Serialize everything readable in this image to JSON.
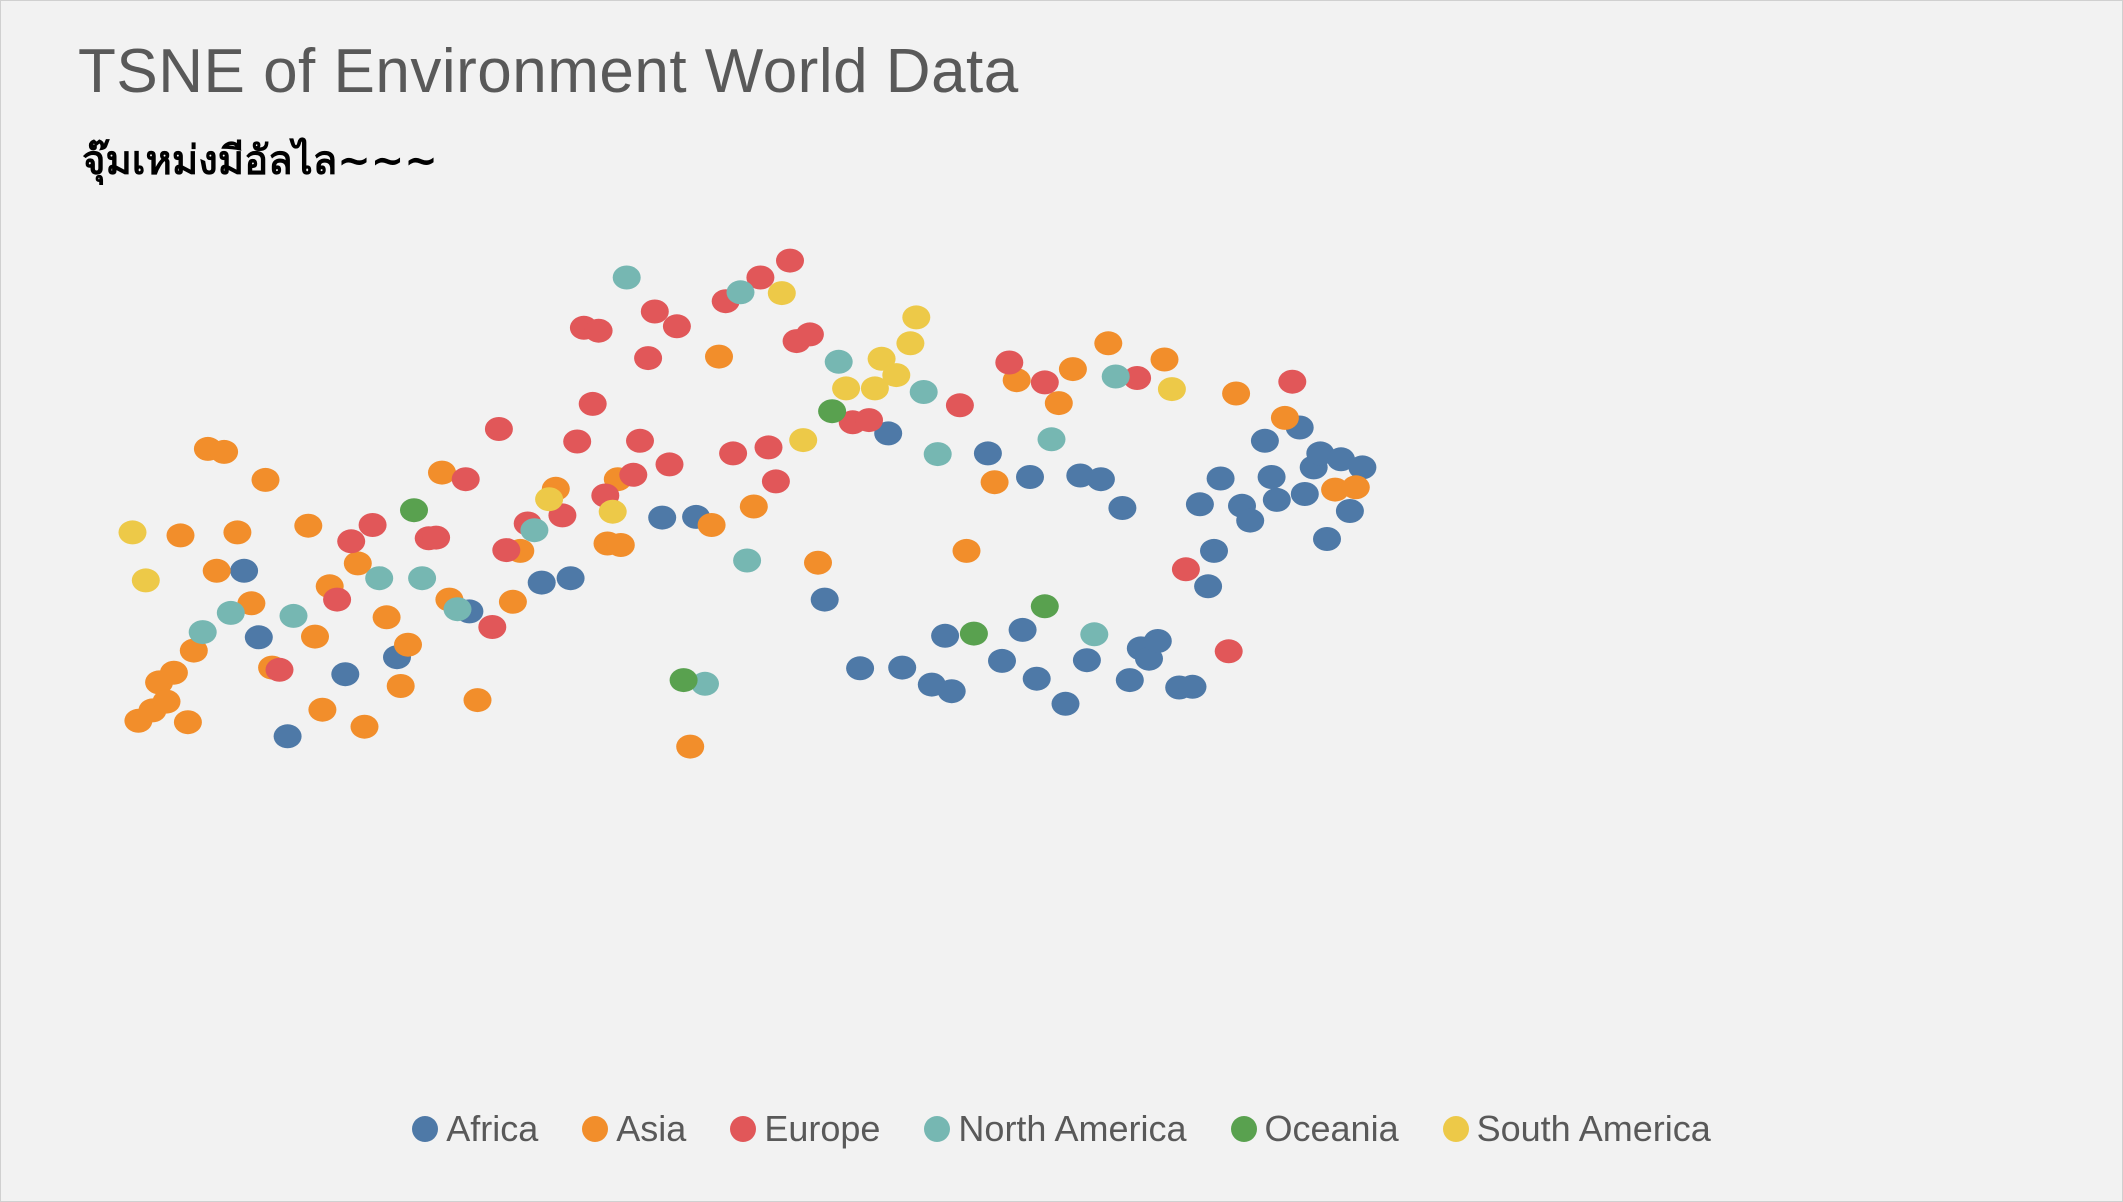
{
  "title": "TSNE of Environment World Data",
  "subtitle": "จุ๊มเหม่งมีอัลไล~~~",
  "colors": {
    "Africa": "#4e79a7",
    "Asia": "#f28e2b",
    "Europe": "#e15759",
    "North America": "#76b7b2",
    "Oceania": "#59a14f",
    "South America": "#edc948"
  },
  "chart_data": {
    "type": "scatter",
    "title": "TSNE of Environment World Data",
    "subtitle": "จุ๊มเหม่งมีอัลไล~~~",
    "xlabel": "",
    "ylabel": "",
    "axes_visible": false,
    "grid": false,
    "legend_position": "bottom",
    "series": [
      {
        "name": "Africa",
        "points": [
          [
            283,
            747
          ],
          [
            303,
            837
          ],
          [
            420,
            887
          ],
          [
            342,
            971
          ],
          [
            490,
            864
          ],
          [
            588,
            802
          ],
          [
            686,
            763
          ],
          [
            725,
            757
          ],
          [
            849,
            675
          ],
          [
            895,
            674
          ],
          [
            1069,
            786
          ],
          [
            1117,
            879
          ],
          [
            1155,
            561
          ],
          [
            1174,
            878
          ],
          [
            1214,
            901
          ],
          [
            1232,
            835
          ],
          [
            1241,
            910
          ],
          [
            1290,
            588
          ],
          [
            1309,
            869
          ],
          [
            1337,
            827
          ],
          [
            1347,
            620
          ],
          [
            1356,
            893
          ],
          [
            1395,
            927
          ],
          [
            1415,
            618
          ],
          [
            1424,
            868
          ],
          [
            1443,
            623
          ],
          [
            1472,
            662
          ],
          [
            1482,
            895
          ],
          [
            1497,
            852
          ],
          [
            1508,
            866
          ],
          [
            1520,
            842
          ],
          [
            1549,
            905
          ],
          [
            1567,
            904
          ],
          [
            1577,
            657
          ],
          [
            1588,
            768
          ],
          [
            1596,
            720
          ],
          [
            1605,
            622
          ],
          [
            1634,
            659
          ],
          [
            1645,
            679
          ],
          [
            1665,
            571
          ],
          [
            1674,
            620
          ],
          [
            1681,
            651
          ],
          [
            1712,
            553
          ],
          [
            1719,
            643
          ],
          [
            1731,
            607
          ],
          [
            1740,
            588
          ],
          [
            1749,
            704
          ],
          [
            1768,
            596
          ],
          [
            1780,
            666
          ],
          [
            1797,
            607
          ]
        ]
      },
      {
        "name": "Asia",
        "points": [
          [
            140,
            950
          ],
          [
            159,
            936
          ],
          [
            168,
            898
          ],
          [
            178,
            924
          ],
          [
            188,
            885
          ],
          [
            207,
            952
          ],
          [
            197,
            699
          ],
          [
            215,
            855
          ],
          [
            234,
            582
          ],
          [
            246,
            747
          ],
          [
            256,
            586
          ],
          [
            274,
            695
          ],
          [
            293,
            791
          ],
          [
            312,
            624
          ],
          [
            321,
            878
          ],
          [
            370,
            686
          ],
          [
            379,
            836
          ],
          [
            389,
            935
          ],
          [
            399,
            768
          ],
          [
            437,
            737
          ],
          [
            446,
            958
          ],
          [
            476,
            810
          ],
          [
            495,
            903
          ],
          [
            505,
            847
          ],
          [
            551,
            614
          ],
          [
            561,
            786
          ],
          [
            599,
            922
          ],
          [
            647,
            789
          ],
          [
            657,
            720
          ],
          [
            705,
            636
          ],
          [
            775,
            710
          ],
          [
            789,
            623
          ],
          [
            793,
            712
          ],
          [
            887,
            985
          ],
          [
            916,
            685
          ],
          [
            926,
            457
          ],
          [
            973,
            660
          ],
          [
            1060,
            736
          ],
          [
            1261,
            720
          ],
          [
            1299,
            627
          ],
          [
            1329,
            489
          ],
          [
            1386,
            520
          ],
          [
            1405,
            474
          ],
          [
            1453,
            439
          ],
          [
            1529,
            461
          ],
          [
            1626,
            507
          ],
          [
            1692,
            540
          ],
          [
            1760,
            637
          ],
          [
            1788,
            634
          ]
        ]
      },
      {
        "name": "Europe",
        "points": [
          [
            331,
            881
          ],
          [
            409,
            786
          ],
          [
            428,
            707
          ],
          [
            457,
            685
          ],
          [
            533,
            703
          ],
          [
            543,
            702
          ],
          [
            583,
            623
          ],
          [
            619,
            823
          ],
          [
            628,
            555
          ],
          [
            638,
            719
          ],
          [
            667,
            683
          ],
          [
            714,
            672
          ],
          [
            734,
            572
          ],
          [
            743,
            418
          ],
          [
            755,
            521
          ],
          [
            763,
            422
          ],
          [
            772,
            645
          ],
          [
            810,
            617
          ],
          [
            819,
            571
          ],
          [
            830,
            459
          ],
          [
            839,
            396
          ],
          [
            859,
            603
          ],
          [
            869,
            416
          ],
          [
            935,
            382
          ],
          [
            945,
            588
          ],
          [
            982,
            350
          ],
          [
            993,
            580
          ],
          [
            1003,
            626
          ],
          [
            1022,
            327
          ],
          [
            1031,
            436
          ],
          [
            1049,
            427
          ],
          [
            1107,
            546
          ],
          [
            1129,
            543
          ],
          [
            1252,
            523
          ],
          [
            1319,
            465
          ],
          [
            1367,
            492
          ],
          [
            1492,
            486
          ],
          [
            1558,
            745
          ],
          [
            1616,
            856
          ],
          [
            1702,
            491
          ]
        ]
      },
      {
        "name": "North America",
        "points": [
          [
            227,
            830
          ],
          [
            265,
            804
          ],
          [
            350,
            808
          ],
          [
            466,
            757
          ],
          [
            524,
            757
          ],
          [
            572,
            799
          ],
          [
            676,
            692
          ],
          [
            801,
            350
          ],
          [
            907,
            900
          ],
          [
            955,
            370
          ],
          [
            964,
            733
          ],
          [
            1088,
            464
          ],
          [
            1203,
            505
          ],
          [
            1222,
            589
          ],
          [
            1376,
            569
          ],
          [
            1434,
            833
          ],
          [
            1463,
            484
          ]
        ]
      },
      {
        "name": "Oceania",
        "points": [
          [
            513,
            665
          ],
          [
            878,
            895
          ],
          [
            1079,
            531
          ],
          [
            1271,
            832
          ],
          [
            1367,
            795
          ]
        ]
      },
      {
        "name": "South America",
        "points": [
          [
            132,
            695
          ],
          [
            150,
            760
          ],
          [
            696,
            650
          ],
          [
            782,
            667
          ],
          [
            1011,
            371
          ],
          [
            1040,
            570
          ],
          [
            1098,
            500
          ],
          [
            1137,
            500
          ],
          [
            1146,
            460
          ],
          [
            1166,
            482
          ],
          [
            1185,
            439
          ],
          [
            1193,
            404
          ],
          [
            1539,
            501
          ]
        ]
      }
    ]
  },
  "legend": {
    "items": [
      {
        "label": "Africa",
        "color": "#4e79a7"
      },
      {
        "label": "Asia",
        "color": "#f28e2b"
      },
      {
        "label": "Europe",
        "color": "#e15759"
      },
      {
        "label": "North America",
        "color": "#76b7b2"
      },
      {
        "label": "Oceania",
        "color": "#59a14f"
      },
      {
        "label": "South America",
        "color": "#edc948"
      }
    ]
  }
}
